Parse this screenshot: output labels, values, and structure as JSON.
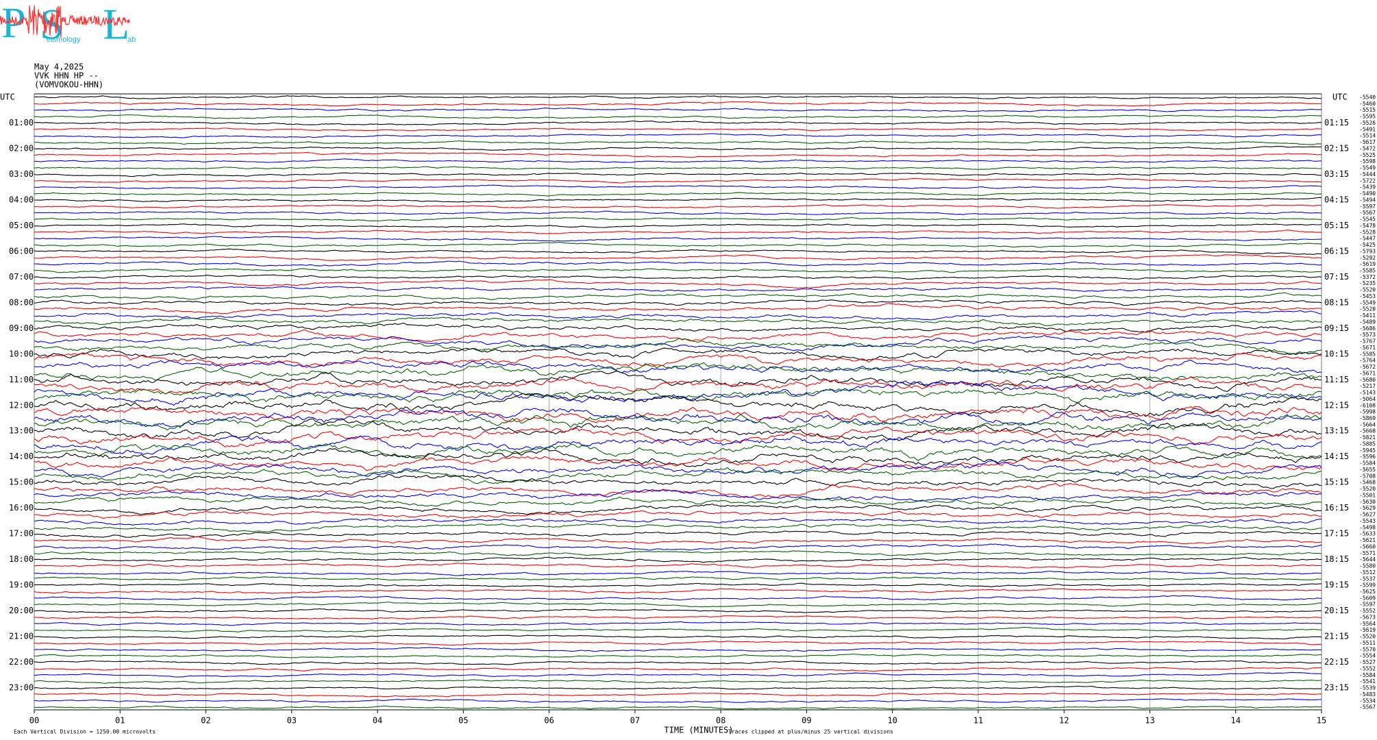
{
  "chart_data": {
    "type": "helicorder",
    "logo": {
      "letters": [
        "P",
        "S",
        "L"
      ],
      "small": [
        "eismology",
        "ab"
      ]
    },
    "header": [
      "May 4,2025",
      "VVK HHN HP --",
      "(VOMVOKOU-HHN)"
    ],
    "left_axis_title": "UTC",
    "right_axis_title": "UTC",
    "left_labels": [
      "01:00",
      "02:00",
      "03:00",
      "04:00",
      "05:00",
      "06:00",
      "07:00",
      "08:00",
      "09:00",
      "10:00",
      "11:00",
      "12:00",
      "13:00",
      "14:00",
      "15:00",
      "16:00",
      "17:00",
      "18:00",
      "19:00",
      "20:00",
      "21:00",
      "22:00",
      "23:00"
    ],
    "right_labels": [
      "01:15",
      "02:15",
      "03:15",
      "04:15",
      "05:15",
      "06:15",
      "07:15",
      "08:15",
      "09:15",
      "10:15",
      "11:15",
      "12:15",
      "13:15",
      "14:15",
      "15:15",
      "16:15",
      "17:15",
      "18:15",
      "19:15",
      "20:15",
      "21:15",
      "22:15",
      "23:15"
    ],
    "trace_means": [
      -5540,
      -5460,
      -5515,
      -5595,
      -5526,
      -5491,
      -5514,
      -5617,
      -5472,
      -5525,
      -5598,
      -5549,
      -5444,
      -5722,
      -5439,
      -5490,
      -5494,
      -5597,
      -5567,
      -5545,
      -5478,
      -5528,
      -5447,
      -5425,
      -5793,
      -5292,
      -5619,
      -5585,
      -5372,
      -5235,
      -5520,
      -5453,
      -5549,
      -5520,
      -5411,
      -5489,
      -5686,
      -5573,
      -5767,
      -5671,
      -5585,
      -5764,
      -5672,
      -5671,
      -5680,
      -5217,
      -5143,
      -5064,
      -6108,
      -5998,
      -5869,
      -5664,
      -5668,
      -5821,
      -5885,
      -5945,
      -5596,
      -5584,
      -5655,
      -5708,
      -5468,
      -5520,
      -5501,
      -5630,
      -5629,
      -5627,
      -5543,
      -5498,
      -5633,
      -5621,
      -5660,
      -5571,
      -5644,
      -5580,
      -5512,
      -5537,
      -5599,
      -5625,
      -5609,
      -5597,
      -5552,
      -5673,
      -5564,
      -5619,
      -5520,
      -5511,
      -5570,
      -5554,
      -5527,
      -5552,
      -5584,
      -5541,
      -5539,
      -5483,
      -5534,
      -5567
    ],
    "trace_colors": [
      "#000000",
      "#ff0000",
      "#0000ff",
      "#006400"
    ],
    "xlim": [
      0,
      15
    ],
    "xticks": [
      {
        "value": 0,
        "label": "00"
      },
      {
        "value": 1,
        "label": "01"
      },
      {
        "value": 2,
        "label": "02"
      },
      {
        "value": 3,
        "label": "03"
      },
      {
        "value": 4,
        "label": "04"
      },
      {
        "value": 5,
        "label": "05"
      },
      {
        "value": 6,
        "label": "06"
      },
      {
        "value": 7,
        "label": "07"
      },
      {
        "value": 8,
        "label": "08"
      },
      {
        "value": 9,
        "label": "09"
      },
      {
        "value": 10,
        "label": "10"
      },
      {
        "value": 11,
        "label": "11"
      },
      {
        "value": 12,
        "label": "12"
      },
      {
        "value": 13,
        "label": "13"
      },
      {
        "value": 14,
        "label": "14"
      },
      {
        "value": 15,
        "label": "15"
      }
    ],
    "xlabel": "TIME (MINUTES)",
    "footer_left": "Each Vertical Division = 1250.00 microvolts",
    "footer_right": "Traces clipped at plus/minus 25 vertical divisions",
    "grid": true
  }
}
